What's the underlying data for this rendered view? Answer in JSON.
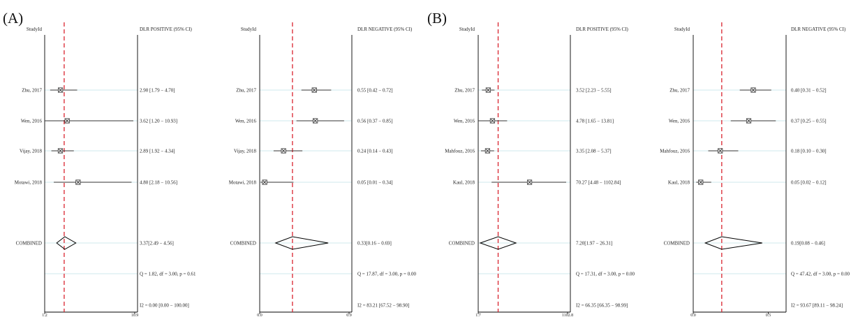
{
  "colors": {
    "null_line": "#d9232e",
    "row_line": "#bfe3e6",
    "mark": "#333333",
    "frame": "#000000"
  },
  "panels": [
    {
      "label": "(A)"
    },
    {
      "label": "(B)"
    }
  ],
  "chart_data": [
    {
      "type": "forest",
      "panel": "(A)",
      "study_header": "StudyId",
      "result_header": "DLR POSITIVE (95% CI)",
      "xlim": [
        1.2,
        10.9
      ],
      "x_tick_labels": [
        "1.2",
        "10.9"
      ],
      "null_line_at": 3.3,
      "studies": [
        {
          "name": "Zhu, 2017",
          "est": 2.9,
          "lo": 1.79,
          "hi": 4.7,
          "text": "2.90 [1.79 − 4.70]"
        },
        {
          "name": "Wen, 2016",
          "est": 3.62,
          "lo": 1.2,
          "hi": 10.93,
          "text": "3.62 [1.20 − 10.93]"
        },
        {
          "name": "Vijay, 2018",
          "est": 2.89,
          "lo": 1.92,
          "hi": 4.34,
          "text": "2.89 [1.92 − 4.34]"
        },
        {
          "name": "Motawi, 2018",
          "est": 4.8,
          "lo": 2.18,
          "hi": 10.56,
          "text": "4.80 [2.18 − 10.56]"
        }
      ],
      "combined": {
        "name": "COMBINED",
        "est": 3.37,
        "lo": 2.49,
        "hi": 4.56,
        "text": "3.37[2.49 − 4.56]"
      },
      "heterogeneity_q": "Q = 1.82, df = 3.00, p = 0.61",
      "heterogeneity_i2": "I2 = 0.00 [0.00 − 100.00]"
    },
    {
      "type": "forest",
      "panel": "(A)",
      "study_header": "StudyId",
      "result_header": "DLR NEGATIVE (95% CI)",
      "xlim": [
        0.0,
        0.9
      ],
      "x_tick_labels": [
        "0.0",
        "0.9"
      ],
      "null_line_at": 0.33,
      "studies": [
        {
          "name": "Zhu, 2017",
          "est": 0.55,
          "lo": 0.42,
          "hi": 0.72,
          "text": "0.55 [0.42 − 0.72]"
        },
        {
          "name": "Wen, 2016",
          "est": 0.56,
          "lo": 0.37,
          "hi": 0.85,
          "text": "0.56 [0.37 − 0.85]"
        },
        {
          "name": "Vijay, 2018",
          "est": 0.24,
          "lo": 0.14,
          "hi": 0.43,
          "text": "0.24 [0.14 − 0.43]"
        },
        {
          "name": "Motawi, 2018",
          "est": 0.05,
          "lo": 0.01,
          "hi": 0.34,
          "text": "0.05 [0.01 − 0.34]"
        }
      ],
      "combined": {
        "name": "COMBINED",
        "est": 0.33,
        "lo": 0.16,
        "hi": 0.69,
        "text": "0.33[0.16 − 0.69]"
      },
      "heterogeneity_q": "Q = 17.87, df = 3.00, p = 0.00",
      "heterogeneity_i2": "I2 = 83.21 [67.52 − 98.90]"
    },
    {
      "type": "forest",
      "panel": "(B)",
      "study_header": "StudyId",
      "result_header": "DLR POSITIVE (95% CI)",
      "xlim": [
        1.7,
        1102.8
      ],
      "x_tick_labels": [
        "1.7",
        "1102.8"
      ],
      "null_line_at": 7.2,
      "studies": [
        {
          "name": "Zhu, 2017",
          "est": 3.52,
          "lo": 2.23,
          "hi": 5.55,
          "text": "3.52 [2.23 − 5.55]"
        },
        {
          "name": "Wen, 2016",
          "est": 4.78,
          "lo": 1.65,
          "hi": 13.81,
          "text": "4.78 [1.65 − 13.81]"
        },
        {
          "name": "Mahfouz, 2016",
          "est": 3.35,
          "lo": 2.08,
          "hi": 5.37,
          "text": "3.35 [2.08 − 5.37]"
        },
        {
          "name": "Kaul, 2018",
          "est": 70.27,
          "lo": 4.48,
          "hi": 1102.84,
          "text": "70.27 [4.48 − 1102.84]"
        }
      ],
      "combined": {
        "name": "COMBINED",
        "est": 7.2,
        "lo": 1.97,
        "hi": 26.31,
        "text": "7.20[1.97 − 26.31]"
      },
      "heterogeneity_q": "Q = 17.31, df = 3.00, p = 0.00",
      "heterogeneity_i2": "I2 = 66.35 [66.35 − 98.99]"
    },
    {
      "type": "forest",
      "panel": "(B)",
      "study_header": "StudyId",
      "result_header": "DLR NEGATIVE (95% CI)",
      "xlim": [
        0.0,
        0.6
      ],
      "x_tick_labels": [
        "0.0",
        "0.5"
      ],
      "x_tick_values": [
        0.0,
        0.5
      ],
      "null_line_at": 0.19,
      "studies": [
        {
          "name": "Zhu, 2017",
          "est": 0.4,
          "lo": 0.31,
          "hi": 0.52,
          "text": "0.40 [0.31 − 0.52]"
        },
        {
          "name": "Wen, 2016",
          "est": 0.37,
          "lo": 0.25,
          "hi": 0.55,
          "text": "0.37 [0.25 − 0.55]"
        },
        {
          "name": "Mahfouz, 2016",
          "est": 0.18,
          "lo": 0.1,
          "hi": 0.3,
          "text": "0.18 [0.10 − 0.30]"
        },
        {
          "name": "Kaul, 2018",
          "est": 0.05,
          "lo": 0.02,
          "hi": 0.12,
          "text": "0.05 [0.02 − 0.12]"
        }
      ],
      "combined": {
        "name": "COMBINED",
        "est": 0.19,
        "lo": 0.08,
        "hi": 0.46,
        "text": "0.19[0.08 − 0.46]"
      },
      "heterogeneity_q": "Q = 47.42, df = 3.00, p = 0.00",
      "heterogeneity_i2": "I2 = 93.67 [89.11 − 98.24]"
    }
  ]
}
